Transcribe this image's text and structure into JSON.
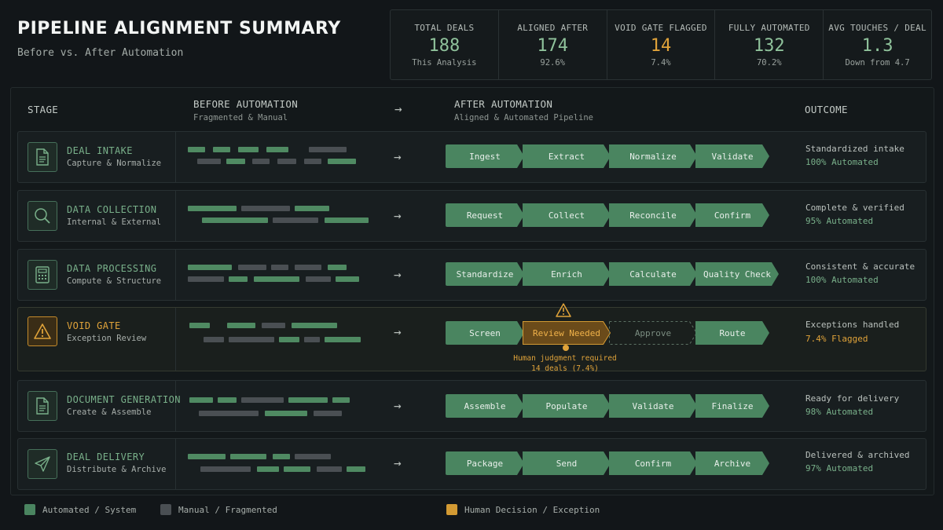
{
  "header": {
    "title": "PIPELINE ALIGNMENT SUMMARY",
    "subtitle": "Before vs. After Automation"
  },
  "stats": [
    {
      "label": "TOTAL DEALS",
      "value": "188",
      "note": "This Analysis",
      "accent": "green"
    },
    {
      "label": "ALIGNED AFTER",
      "value": "174",
      "note": "92.6%",
      "accent": "green"
    },
    {
      "label": "VOID GATE FLAGGED",
      "value": "14",
      "note": "7.4%",
      "accent": "orange"
    },
    {
      "label": "FULLY AUTOMATED",
      "value": "132",
      "note": "70.2%",
      "accent": "green"
    },
    {
      "label": "AVG TOUCHES / DEAL",
      "value": "1.3",
      "note": "Down from 4.7",
      "accent": "green"
    }
  ],
  "columns": {
    "stage": "STAGE",
    "before": "BEFORE AUTOMATION",
    "before_sub": "Fragmented & Manual",
    "arrow": "→",
    "after": "AFTER AUTOMATION",
    "after_sub": "Aligned & Automated Pipeline",
    "outcome": "OUTCOME"
  },
  "rows": [
    {
      "name": "DEAL INTAKE",
      "sub": "Capture & Normalize",
      "icon": "document-icon",
      "steps": [
        "Ingest",
        "Extract",
        "Normalize",
        "Validate"
      ],
      "outcome": "Standardized intake",
      "pct": "100% Automated"
    },
    {
      "name": "DATA COLLECTION",
      "sub": "Internal & External",
      "icon": "search-icon",
      "steps": [
        "Request",
        "Collect",
        "Reconcile",
        "Confirm"
      ],
      "outcome": "Complete & verified",
      "pct": "95% Automated"
    },
    {
      "name": "DATA PROCESSING",
      "sub": "Compute & Structure",
      "icon": "calculator-icon",
      "steps": [
        "Standardize",
        "Enrich",
        "Calculate",
        "Quality Check"
      ],
      "outcome": "Consistent & accurate",
      "pct": "100% Automated"
    },
    {
      "name": "VOID GATE",
      "sub": "Exception Review",
      "icon": "warning-icon",
      "steps": [
        "Screen",
        "Review Needed",
        "Approve",
        "Route"
      ],
      "outcome": "Exceptions handled",
      "pct": "7.4% Flagged",
      "note_line1": "Human judgment required",
      "note_line2": "14 deals (7.4%)"
    },
    {
      "name": "DOCUMENT GENERATION",
      "sub": "Create & Assemble",
      "icon": "document-icon",
      "steps": [
        "Assemble",
        "Populate",
        "Validate",
        "Finalize"
      ],
      "outcome": "Ready for delivery",
      "pct": "98% Automated"
    },
    {
      "name": "DEAL DELIVERY",
      "sub": "Distribute & Archive",
      "icon": "send-icon",
      "steps": [
        "Package",
        "Send",
        "Confirm",
        "Archive"
      ],
      "outcome": "Delivered & archived",
      "pct": "97% Automated"
    }
  ],
  "legend": {
    "automated": "Automated / System",
    "manual": "Manual / Fragmented",
    "human": "Human Decision / Exception"
  },
  "colors": {
    "automated": "#4a8560",
    "manual": "#4a4f53",
    "human": "#d39a33"
  }
}
